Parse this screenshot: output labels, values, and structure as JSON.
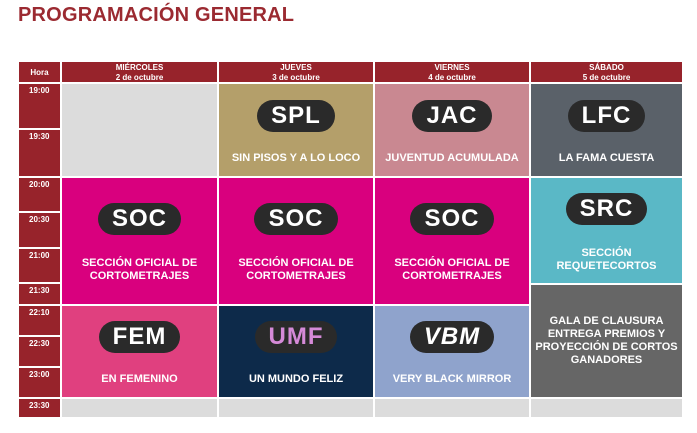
{
  "title": "PROGRAMACIÓN GENERAL",
  "header": {
    "hora": "Hora",
    "days": [
      {
        "day": "MIÉRCOLES",
        "date": "2 de octubre"
      },
      {
        "day": "JUEVES",
        "date": "3 de octubre"
      },
      {
        "day": "VIERNES",
        "date": "4 de octubre"
      },
      {
        "day": "SÁBADO",
        "date": "5 de octubre"
      }
    ]
  },
  "times": [
    "19:00",
    "19:30",
    "20:00",
    "20:30",
    "21:00",
    "21:30",
    "22:10",
    "22:30",
    "23:00",
    "23:30"
  ],
  "events": {
    "spl": {
      "logo": "SPL",
      "name": "SIN PISOS Y A LO LOCO",
      "color": "#b49f6a"
    },
    "jac": {
      "logo": "JAC",
      "name": "JUVENTUD ACUMULADA",
      "color": "#c98891"
    },
    "lfc": {
      "logo": "LFC",
      "name": "LA FAMA CUESTA",
      "color": "#5a6169"
    },
    "soc": {
      "logo": "SOC",
      "name1": "SECCIÓN OFICIAL DE",
      "name2": "CORTOMETRAJES",
      "color": "#d9007e"
    },
    "src": {
      "logo": "SRC",
      "name1": "SECCIÓN",
      "name2": "REQUETECORTOS",
      "color": "#5ab8c6"
    },
    "fem": {
      "logo": "FEM",
      "name": "EN FEMENINO",
      "color": "#e0407f"
    },
    "umf": {
      "logo": "UMF",
      "name": "UN MUNDO FELIZ",
      "color": "#0d2a4a"
    },
    "vbm": {
      "logo": "VBM",
      "name": "VERY BLACK MIRROR",
      "color": "#8fa3cc"
    },
    "gala": {
      "l1": "GALA DE CLAUSURA",
      "l2": "ENTREGA PREMIOS Y",
      "l3": "PROYECCIÓN DE CORTOS",
      "l4": "GANADORES",
      "color": "#666666"
    }
  }
}
